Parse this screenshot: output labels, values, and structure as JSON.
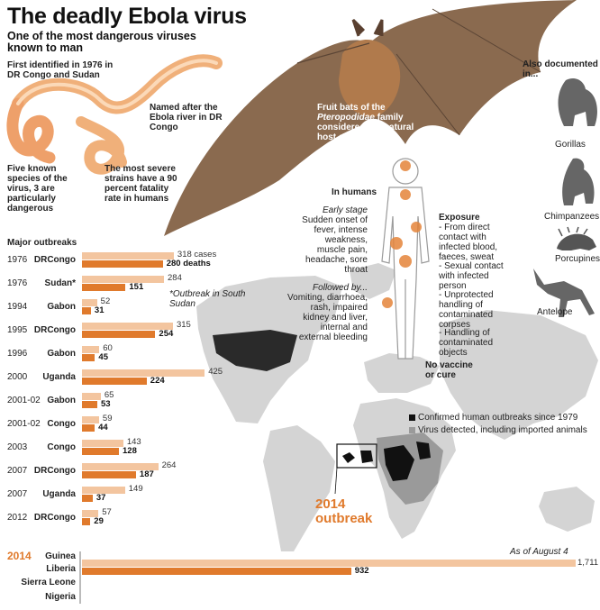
{
  "title": "The deadly Ebola virus",
  "subtitle": "One of the most dangerous viruses known to man",
  "virus_notes": {
    "first_identified": "First identified in 1976 in DR Congo and Sudan",
    "named_after": "Named after the Ebola river in DR Congo",
    "species": "Five known species of the virus, 3 are particularly dangerous",
    "strains": "The most severe strains have a 90 percent fatality rate in humans"
  },
  "bat_note": {
    "line1": "Fruit bats of the",
    "family": "Pteropodidae",
    "line2": "family considered the natural host of the virus"
  },
  "also_documented": {
    "heading": "Also documented in...",
    "animals": [
      "Gorillas",
      "Chimpanzees",
      "Porcupines",
      "Antelope"
    ]
  },
  "humans": {
    "heading": "In humans",
    "early_label": "Early stage",
    "early_text": "Sudden onset of fever, intense weakness, muscle pain, headache, sore throat",
    "followed_label": "Followed by...",
    "followed_text": "Vomiting, diarrhoea, rash, impaired kidney and liver, internal and external bleeding",
    "exposure_heading": "Exposure",
    "exposure_items": [
      "- From direct contact with infected blood, faeces, sweat",
      "- Sexual contact with infected person",
      "- Unprotected handling of contaminated corpses",
      "- Handling of contaminated objects"
    ],
    "no_vaccine": "No vaccine or cure"
  },
  "map_legend": {
    "confirmed": "Confirmed human outbreaks since 1979",
    "detected": "Virus detected, including imported animals",
    "confirmed_color": "#111111",
    "detected_color": "#9a9a9a"
  },
  "outbreak_2014_label": "2014 outbreak",
  "outbreaks": {
    "heading": "Major outbreaks",
    "footnote": "*Outbreak in South Sudan",
    "cases_color": "#f3c59f",
    "deaths_color": "#e07a2c",
    "rows": [
      {
        "year": "1976",
        "country": "DRCongo",
        "cases": "318 cases",
        "deaths": "280 deaths",
        "cases_n": 318,
        "deaths_n": 280
      },
      {
        "year": "1976",
        "country": "Sudan*",
        "cases": "284",
        "deaths": "151",
        "cases_n": 284,
        "deaths_n": 151
      },
      {
        "year": "1994",
        "country": "Gabon",
        "cases": "52",
        "deaths": "31",
        "cases_n": 52,
        "deaths_n": 31
      },
      {
        "year": "1995",
        "country": "DRCongo",
        "cases": "315",
        "deaths": "254",
        "cases_n": 315,
        "deaths_n": 254
      },
      {
        "year": "1996",
        "country": "Gabon",
        "cases": "60",
        "deaths": "45",
        "cases_n": 60,
        "deaths_n": 45
      },
      {
        "year": "2000",
        "country": "Uganda",
        "cases": "425",
        "deaths": "224",
        "cases_n": 425,
        "deaths_n": 224
      },
      {
        "year": "2001-02",
        "country": "Gabon",
        "cases": "65",
        "deaths": "53",
        "cases_n": 65,
        "deaths_n": 53
      },
      {
        "year": "2001-02",
        "country": "Congo",
        "cases": "59",
        "deaths": "44",
        "cases_n": 59,
        "deaths_n": 44
      },
      {
        "year": "2003",
        "country": "Congo",
        "cases": "143",
        "deaths": "128",
        "cases_n": 143,
        "deaths_n": 128
      },
      {
        "year": "2007",
        "country": "DRCongo",
        "cases": "264",
        "deaths": "187",
        "cases_n": 264,
        "deaths_n": 187
      },
      {
        "year": "2007",
        "country": "Uganda",
        "cases": "149",
        "deaths": "37",
        "cases_n": 149,
        "deaths_n": 37
      },
      {
        "year": "2012",
        "country": "DRCongo",
        "cases": "57",
        "deaths": "29",
        "cases_n": 57,
        "deaths_n": 29
      }
    ],
    "latest": {
      "year": "2014",
      "countries": [
        "Guinea",
        "Liberia",
        "Sierra Leone",
        "Nigeria"
      ],
      "as_of": "As of August 4",
      "cases": "1,711",
      "deaths": "932",
      "cases_n": 1711,
      "deaths_n": 932
    }
  },
  "chart_data": {
    "type": "bar",
    "title": "Major outbreaks",
    "categories": [
      "1976 DRCongo",
      "1976 Sudan*",
      "1994 Gabon",
      "1995 DRCongo",
      "1996 Gabon",
      "2000 Uganda",
      "2001-02 Gabon",
      "2001-02 Congo",
      "2003 Congo",
      "2007 DRCongo",
      "2007 Uganda",
      "2012 DRCongo",
      "2014 Guinea Liberia Sierra Leone Nigeria"
    ],
    "series": [
      {
        "name": "cases",
        "values": [
          318,
          284,
          52,
          315,
          60,
          425,
          65,
          59,
          143,
          264,
          149,
          57,
          1711
        ]
      },
      {
        "name": "deaths",
        "values": [
          280,
          151,
          31,
          254,
          45,
          224,
          53,
          44,
          128,
          187,
          37,
          29,
          932
        ]
      }
    ]
  }
}
